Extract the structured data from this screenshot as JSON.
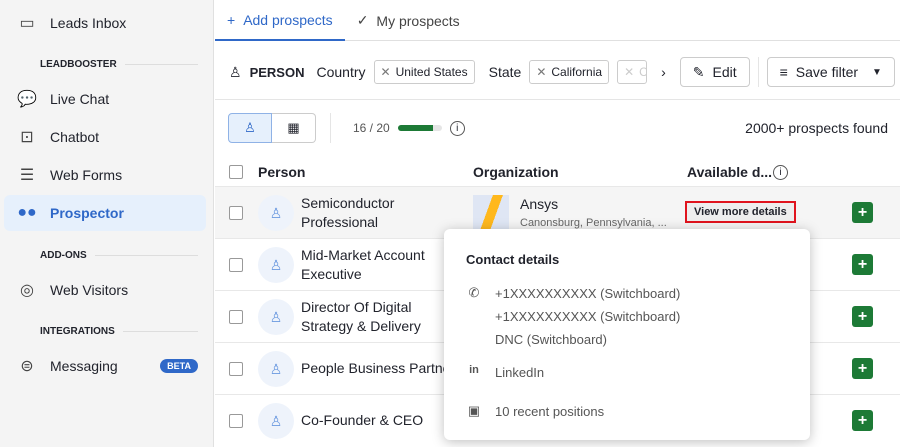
{
  "sidebar": {
    "items": [
      {
        "label": "Leads Inbox",
        "icon": "inbox-icon"
      },
      {
        "label": "Live Chat",
        "icon": "chat-icon"
      },
      {
        "label": "Chatbot",
        "icon": "chatbot-icon"
      },
      {
        "label": "Web Forms",
        "icon": "form-icon"
      },
      {
        "label": "Prospector",
        "icon": "binoculars-icon",
        "active": true
      },
      {
        "label": "Web Visitors",
        "icon": "radar-icon"
      },
      {
        "label": "Messaging",
        "icon": "message-icon",
        "badge": "BETA"
      }
    ],
    "sections": [
      "LEADBOOSTER",
      "ADD-ONS",
      "INTEGRATIONS"
    ]
  },
  "tabs": [
    {
      "label": "Add prospects",
      "active": true
    },
    {
      "label": "My prospects"
    }
  ],
  "filters": {
    "type": "PERSON",
    "country_label": "Country",
    "country": "United States",
    "state_label": "State",
    "state": "California",
    "truncated_chip": "C",
    "edit": "Edit",
    "save": "Save filter"
  },
  "toolbar": {
    "quota": "16 / 20",
    "quota_fraction": 0.8,
    "found": "2000+ prospects found"
  },
  "table": {
    "headers": [
      "Person",
      "Organization",
      "Available d..."
    ],
    "rows": [
      {
        "person": "Semiconductor Professional",
        "org": "Ansys",
        "org_location": "Canonsburg, Pennsylvania, ...",
        "action": "View more details"
      },
      {
        "person": "Mid-Market Account Executive"
      },
      {
        "person": "Director Of Digital Strategy & Delivery"
      },
      {
        "person": "People Business Partner"
      },
      {
        "person": "Co-Founder & CEO"
      }
    ]
  },
  "popover": {
    "title": "Contact details",
    "phones": [
      "+1XXXXXXXXXX (Switchboard)",
      "+1XXXXXXXXXX (Switchboard)",
      "DNC (Switchboard)"
    ],
    "linkedin": "LinkedIn",
    "positions": "10 recent positions"
  },
  "colors": {
    "accent": "#2f68c8",
    "green": "#1d7a36",
    "highlight": "#e0141e"
  }
}
